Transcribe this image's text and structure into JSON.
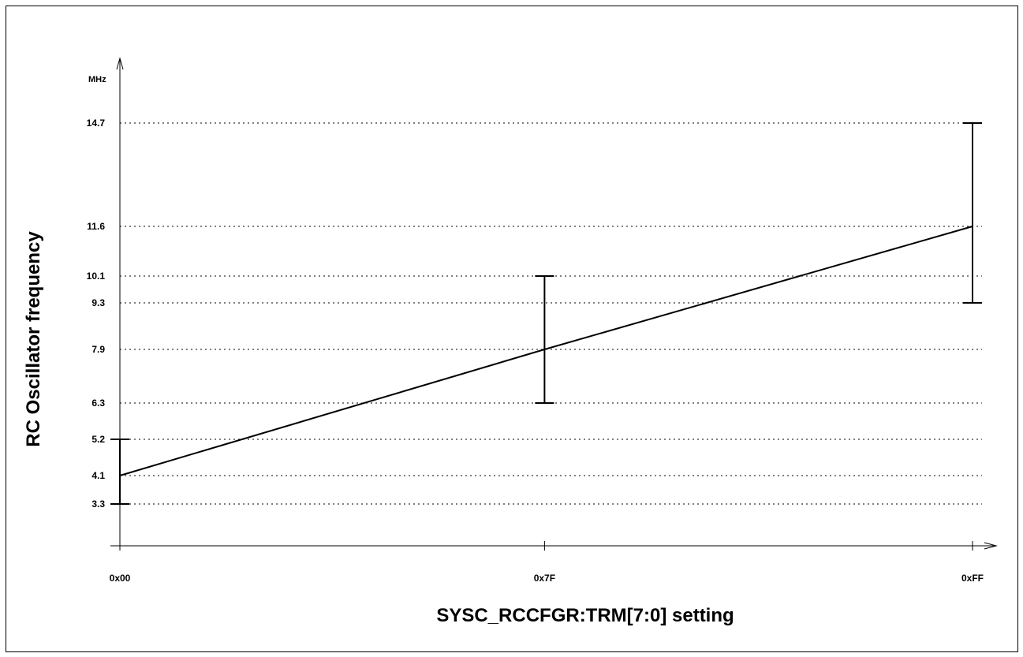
{
  "chart_data": {
    "type": "line",
    "xlabel": "SYSC_RCCFGR:TRM[7:0] setting",
    "ylabel": "RC Oscillator frequency",
    "y_unit": "MHz",
    "categories": [
      "0x00",
      "0x7F",
      "0xFF"
    ],
    "x": [
      0,
      127,
      255
    ],
    "ylim": [
      2.2,
      15.6
    ],
    "y_ticks": [
      3.3,
      4.1,
      5.2,
      6.3,
      7.9,
      9.3,
      10.1,
      11.6,
      14.7
    ],
    "y_tick_labels": [
      "3.3",
      "4.1",
      "5.2",
      "6.3",
      "7.9",
      "9.3",
      "10.1",
      "11.6",
      "14.7"
    ],
    "grid": "horizontal-dotted",
    "series": [
      {
        "typical": [
          4.1,
          7.9,
          11.6
        ],
        "min": [
          3.3,
          6.3,
          9.3
        ],
        "max": [
          5.2,
          10.1,
          14.7
        ]
      }
    ],
    "colors": {
      "line": "#000000",
      "grid": "#000000",
      "background": "#ffffff"
    }
  }
}
